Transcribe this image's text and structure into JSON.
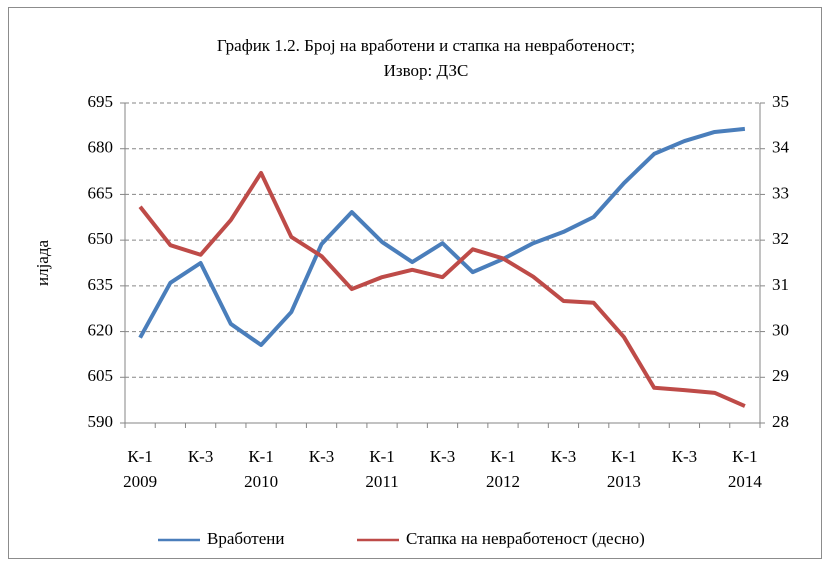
{
  "chart_data": {
    "type": "line",
    "title": "График 1.2. Број на вработени и стапка на невработеност;",
    "subtitle": "Извор: ДЗС",
    "y_label": "илјада",
    "categories": [
      "К-1",
      null,
      "К-3",
      null,
      "К-1",
      null,
      "К-3",
      null,
      "К-1",
      null,
      "К-3",
      null,
      "К-1",
      null,
      "К-3",
      null,
      "К-1",
      null,
      "К-3",
      null,
      "К-1"
    ],
    "category_years": [
      "2009",
      null,
      null,
      null,
      "2010",
      null,
      null,
      null,
      "2011",
      null,
      null,
      null,
      "2012",
      null,
      null,
      null,
      "2013",
      null,
      null,
      null,
      "2014"
    ],
    "series": [
      {
        "name": "Вработени",
        "color": "#4a7ebb",
        "values": [
          618,
          636,
          642.5,
          622.5,
          615.6,
          626.4,
          648.7,
          659.2,
          649.4,
          642.8,
          649,
          639.5,
          643.8,
          649,
          652.7,
          657.6,
          668.7,
          678.3,
          682.5,
          685.5,
          686.5
        ]
      },
      {
        "name": "Стапка на невработеност (десно)",
        "color": "#be4b48",
        "axis": "y2",
        "values": [
          32.73,
          31.89,
          31.68,
          32.44,
          33.47,
          32.07,
          31.65,
          30.93,
          31.19,
          31.35,
          31.19,
          31.8,
          31.6,
          31.2,
          30.67,
          30.63,
          29.88,
          28.77,
          28.72,
          28.66,
          28.37
        ]
      }
    ],
    "ylim": [
      590,
      695
    ],
    "yticks": [
      590,
      605,
      620,
      635,
      650,
      665,
      680,
      695
    ],
    "y2lim": [
      28,
      35
    ],
    "y2ticks": [
      28,
      29,
      30,
      31,
      32,
      33,
      34,
      35
    ],
    "grid": true,
    "legend": "bottom"
  }
}
